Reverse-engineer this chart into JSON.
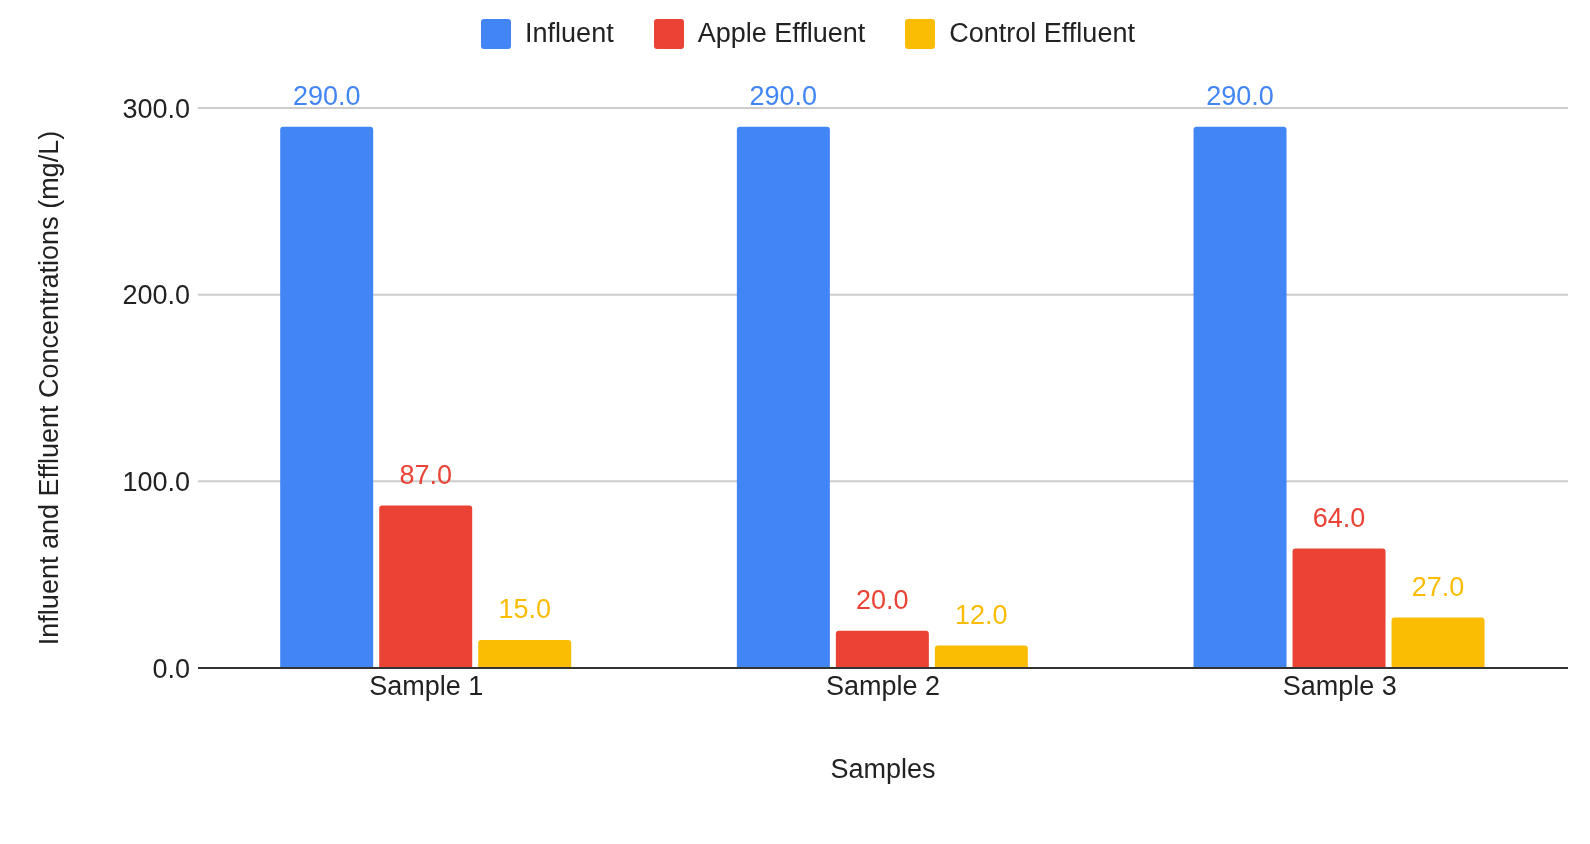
{
  "chart_data": {
    "type": "bar",
    "xlabel": "Samples",
    "ylabel": "Influent and Effluent Concentrations (mg/L)",
    "categories": [
      "Sample 1",
      "Sample 2",
      "Sample 3"
    ],
    "series": [
      {
        "name": "Influent",
        "color": "#4285f4",
        "values": [
          290,
          290,
          290
        ],
        "value_labels": [
          "290.0",
          "290.0",
          "290.0"
        ]
      },
      {
        "name": "Apple Effluent",
        "color": "#ea4335",
        "values": [
          87,
          20,
          64
        ],
        "value_labels": [
          "87.0",
          "20.0",
          "64.0"
        ]
      },
      {
        "name": "Control Effluent",
        "color": "#fbbc04",
        "values": [
          15,
          12,
          27
        ],
        "value_labels": [
          "15.0",
          "12.0",
          "27.0"
        ]
      }
    ],
    "ylim": [
      0,
      300
    ],
    "yticks": [
      {
        "value": 0,
        "label": "0.0"
      },
      {
        "value": 100,
        "label": "100.0"
      },
      {
        "value": 200,
        "label": "200.0"
      },
      {
        "value": 300,
        "label": "300.0"
      }
    ],
    "grid": "y",
    "legend": "top"
  }
}
